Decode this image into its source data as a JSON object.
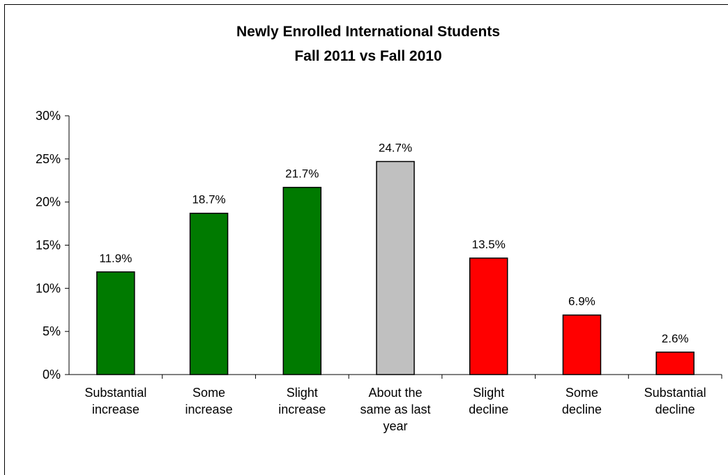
{
  "chart_data": {
    "type": "bar",
    "title": [
      "Newly  Enrolled International Students",
      "Fall 2011 vs Fall 2010"
    ],
    "categories": [
      [
        "Substantial",
        "increase"
      ],
      [
        "Some",
        "increase"
      ],
      [
        "Slight",
        "increase"
      ],
      [
        "About the",
        "same as last",
        "year"
      ],
      [
        "Slight",
        "decline"
      ],
      [
        "Some",
        "decline"
      ],
      [
        "Substantial",
        "decline"
      ]
    ],
    "values": [
      11.9,
      18.7,
      21.7,
      24.7,
      13.5,
      6.9,
      2.6
    ],
    "data_labels": [
      "11.9%",
      "18.7%",
      "21.7%",
      "24.7%",
      "13.5%",
      "6.9%",
      "2.6%"
    ],
    "colors": [
      "#007a00",
      "#007a00",
      "#007a00",
      "#c0c0c0",
      "#ff0000",
      "#ff0000",
      "#ff0000"
    ],
    "ylim": [
      0,
      30
    ],
    "yticks": [
      "0%",
      "5%",
      "10%",
      "15%",
      "20%",
      "25%",
      "30%"
    ],
    "ytick_values": [
      0,
      5,
      10,
      15,
      20,
      25,
      30
    ],
    "xlabel": "",
    "ylabel": "",
    "grid": false,
    "legend": "none"
  }
}
